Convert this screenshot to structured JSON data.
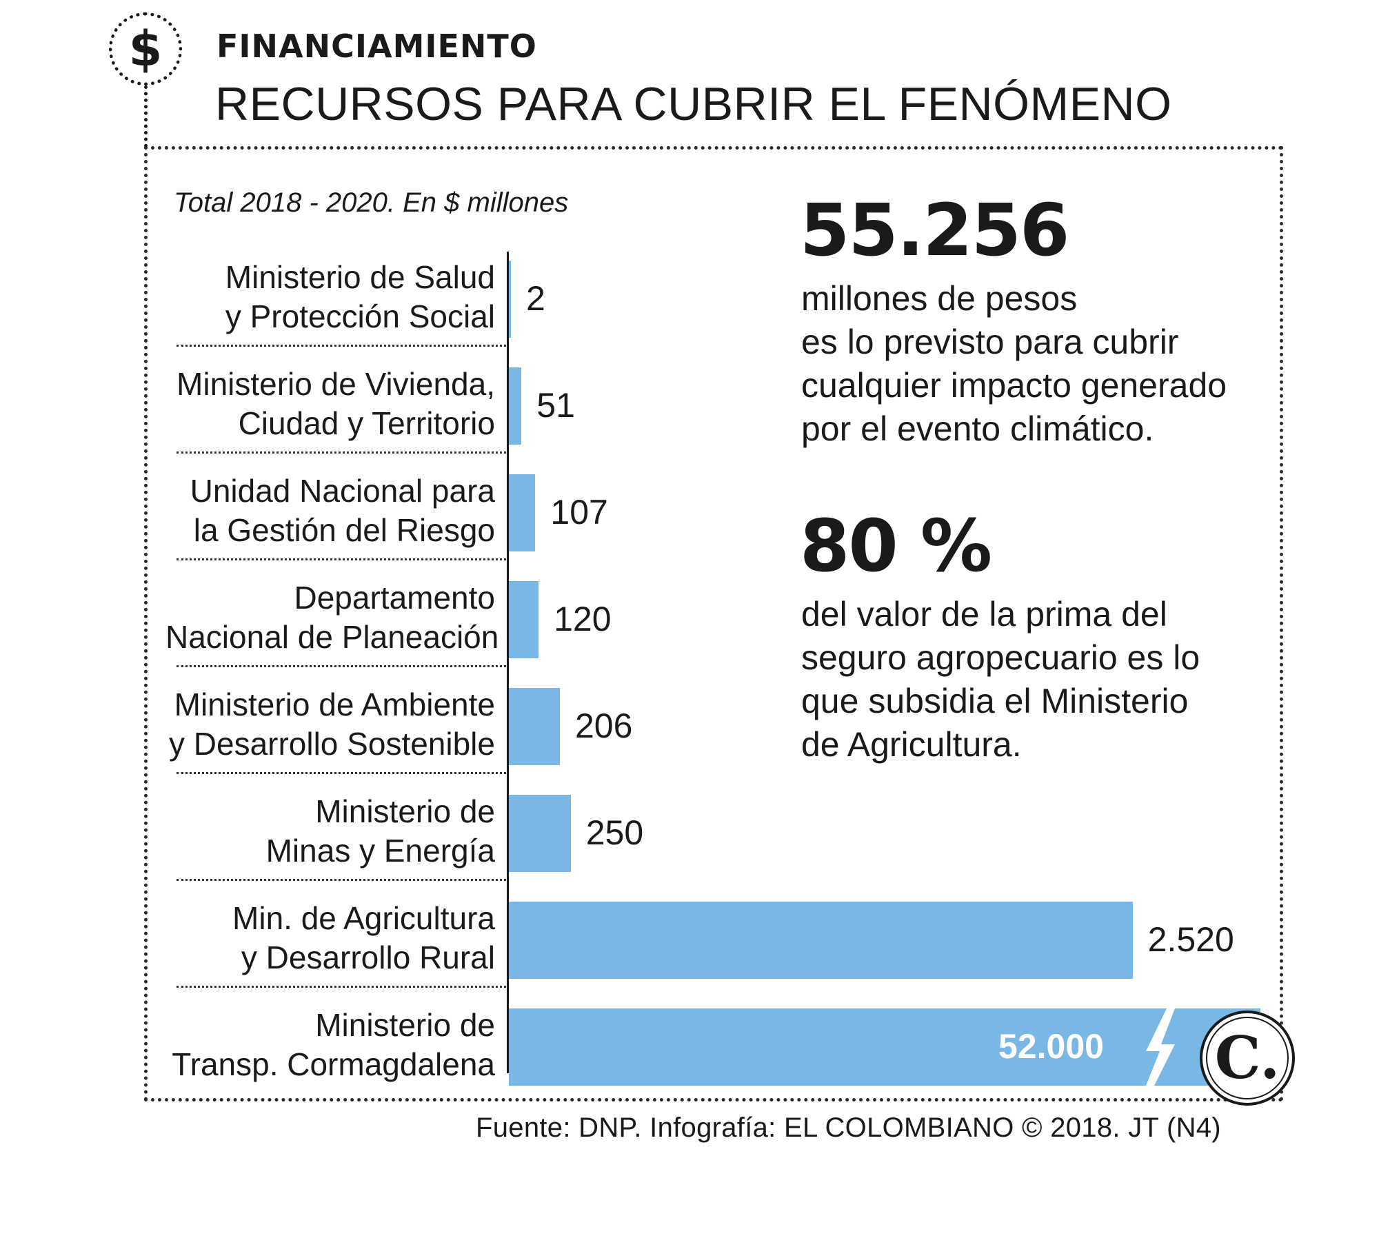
{
  "header": {
    "badge_symbol": "$",
    "kicker": "FINANCIAMIENTO",
    "headline": "RECURSOS PARA CUBRIR EL FENÓMENO"
  },
  "chart_data": {
    "type": "bar",
    "orientation": "horizontal",
    "subtitle": "Total 2018 - 2020. En $ millones",
    "categories": [
      [
        "Ministerio de Salud",
        "y Protección Social"
      ],
      [
        "Ministerio de Vivienda,",
        "Ciudad y Territorio"
      ],
      [
        "Unidad Nacional para",
        "la Gestión del Riesgo"
      ],
      [
        "Departamento",
        "Nacional de Planeación"
      ],
      [
        "Ministerio de Ambiente",
        "y Desarrollo Sostenible"
      ],
      [
        "Ministerio de",
        "Minas y Energía"
      ],
      [
        "Min. de Agricultura",
        "y Desarrollo Rural"
      ],
      [
        "Ministerio de",
        "Transp. Cormagdalena"
      ]
    ],
    "values": [
      2,
      51,
      107,
      120,
      206,
      250,
      2520,
      52000
    ],
    "value_labels": [
      "2",
      "51",
      "107",
      "120",
      "206",
      "250",
      "2.520",
      "52.000"
    ],
    "truncated_last_bar": true,
    "bar_color": "#79b7e4",
    "grid": false
  },
  "stats": [
    {
      "value": "55.256",
      "lines": [
        "millones de pesos",
        "es lo previsto para cubrir",
        "cualquier impacto generado",
        "por el evento climático."
      ]
    },
    {
      "value": "80 %",
      "lines": [
        "del valor de la prima del",
        "seguro agropecuario es lo",
        "que subsidia el Ministerio",
        "de Agricultura."
      ]
    }
  ],
  "logo": {
    "letter": "C."
  },
  "footer": {
    "source": "Fuente: DNP. Infografía: EL COLOMBIANO © 2018. JT (N4)"
  }
}
